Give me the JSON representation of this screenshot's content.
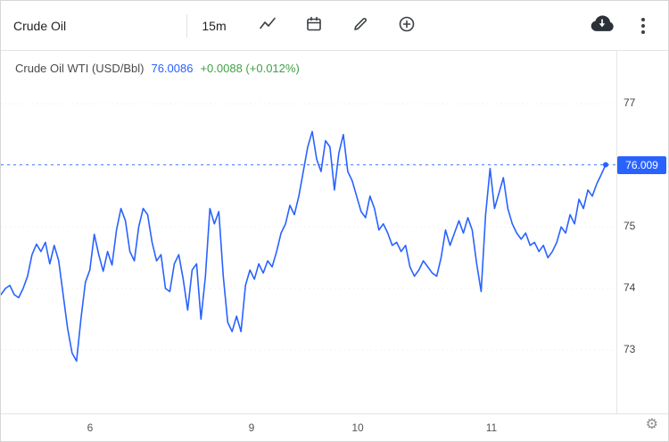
{
  "toolbar": {
    "symbol_input": {
      "value": "Crude Oil"
    },
    "interval_label": "15m",
    "icons": {
      "chart_style": "line-chart-zigzag",
      "date_range": "calendar",
      "draw": "pencil",
      "compare": "plus-circle",
      "export": "cloud-download",
      "menu": "kebab-vertical-dots"
    }
  },
  "legend": {
    "symbol": "Crude Oil WTI (USD/Bbl)",
    "price": "76.0086",
    "change": "+0.0088 (+0.012%)",
    "price_color": "#2962ff",
    "change_color": "#43a047"
  },
  "chart_data": {
    "type": "line",
    "title": "Crude Oil WTI (USD/Bbl)",
    "line_color": "#2962ff",
    "grid_color": "#e9e9e9",
    "grid": true,
    "legend_position": "top-left",
    "xlabel": "",
    "ylabel": "USD/Bbl",
    "ylim": [
      71.97,
      77.86
    ],
    "y_ticks": [
      77,
      76,
      75,
      74,
      73
    ],
    "x_ticks": [
      {
        "label": "6",
        "pos": 0.145
      },
      {
        "label": "9",
        "pos": 0.407
      },
      {
        "label": "10",
        "pos": 0.58
      },
      {
        "label": "11",
        "pos": 0.797
      }
    ],
    "last_price": 76.009,
    "last_price_label": "76.009",
    "values": [
      73.9,
      74.0,
      74.05,
      73.9,
      73.85,
      74.0,
      74.2,
      74.55,
      74.72,
      74.6,
      74.75,
      74.4,
      74.7,
      74.45,
      73.9,
      73.35,
      72.95,
      72.82,
      73.5,
      74.1,
      74.3,
      74.88,
      74.55,
      74.28,
      74.6,
      74.38,
      74.95,
      75.3,
      75.1,
      74.6,
      74.45,
      75.0,
      75.3,
      75.2,
      74.75,
      74.45,
      74.55,
      74.0,
      73.95,
      74.4,
      74.55,
      74.15,
      73.65,
      74.3,
      74.4,
      73.5,
      74.2,
      75.3,
      75.05,
      75.25,
      74.2,
      73.45,
      73.3,
      73.55,
      73.3,
      74.05,
      74.3,
      74.15,
      74.4,
      74.25,
      74.45,
      74.35,
      74.6,
      74.9,
      75.05,
      75.35,
      75.2,
      75.5,
      75.9,
      76.3,
      76.55,
      76.1,
      75.9,
      76.4,
      76.3,
      75.6,
      76.2,
      76.5,
      75.9,
      75.75,
      75.5,
      75.25,
      75.15,
      75.5,
      75.3,
      74.95,
      75.05,
      74.9,
      74.7,
      74.75,
      74.6,
      74.7,
      74.35,
      74.2,
      74.3,
      74.45,
      74.35,
      74.25,
      74.2,
      74.5,
      74.95,
      74.7,
      74.9,
      75.1,
      74.9,
      75.15,
      74.95,
      74.4,
      73.95,
      75.2,
      75.95,
      75.3,
      75.55,
      75.8,
      75.3,
      75.05,
      74.9,
      74.8,
      74.9,
      74.7,
      74.75,
      74.6,
      74.7,
      74.5,
      74.6,
      74.75,
      75.0,
      74.9,
      75.2,
      75.05,
      75.45,
      75.3,
      75.6,
      75.5,
      75.7,
      75.85,
      76.01
    ]
  },
  "footer": {
    "settings_icon": "gear"
  }
}
